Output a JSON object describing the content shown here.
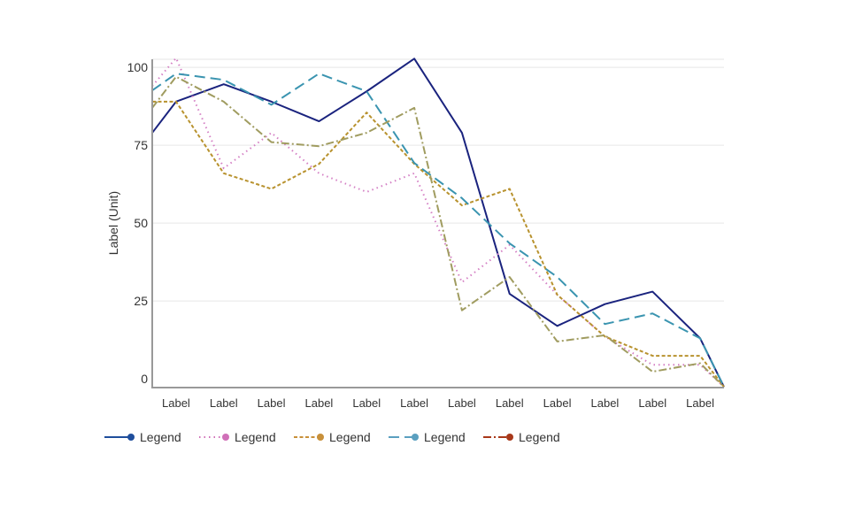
{
  "chart_data": {
    "type": "line",
    "title": "",
    "xlabel": "",
    "ylabel": "Label (Unit)",
    "ylim": [
      -2.8,
      102.6
    ],
    "yticks": [
      0,
      25,
      50,
      75,
      100
    ],
    "grid": true,
    "legend_position": "bottom-left",
    "categories": [
      "Label",
      "Label",
      "Label",
      "Label",
      "Label",
      "Label",
      "Label",
      "Label",
      "Label",
      "Label",
      "Label",
      "Label"
    ],
    "x": [
      0,
      0.5,
      1.5,
      2.5,
      3.5,
      4.5,
      5.5,
      6.5,
      7.5,
      8.5,
      9.5,
      10.5,
      11.5,
      12
    ],
    "series": [
      {
        "name": "Legend",
        "color": "#1a237e",
        "legend_color": "#1f4e9c",
        "dash": "solid",
        "values": [
          79,
          89,
          94.6,
          89,
          82.7,
          92.3,
          102.8,
          79,
          27.3,
          17,
          24,
          28,
          13,
          -2.6
        ]
      },
      {
        "name": "Legend",
        "color": "#d47fc4",
        "legend_color": "#d070b8",
        "dash": "dotted",
        "values": [
          94,
          103,
          67.6,
          79,
          66,
          60,
          66,
          31,
          43,
          27,
          13.6,
          4.5,
          4.5,
          -2.6
        ]
      },
      {
        "name": "Legend",
        "color": "#b8922e",
        "legend_color": "#c8903a",
        "dash": "short-dash",
        "values": [
          89,
          89,
          66,
          61,
          69,
          85.5,
          69,
          55.7,
          61,
          27,
          13.6,
          7.4,
          7.4,
          -2.6
        ]
      },
      {
        "name": "Legend",
        "color": "#3a94b0",
        "legend_color": "#5ba0c0",
        "dash": "long-dash",
        "values": [
          92.6,
          98,
          96,
          88,
          98,
          92.3,
          69.3,
          58,
          43.5,
          32.7,
          17.6,
          21,
          13,
          -2.6
        ]
      },
      {
        "name": "Legend",
        "color": "#a09c60",
        "legend_color": "#a8381a",
        "dash": "dash-dot",
        "values": [
          87,
          97,
          89,
          76,
          74.7,
          79,
          87,
          22,
          32.7,
          12,
          14,
          2.3,
          5,
          -2.6
        ]
      }
    ]
  }
}
